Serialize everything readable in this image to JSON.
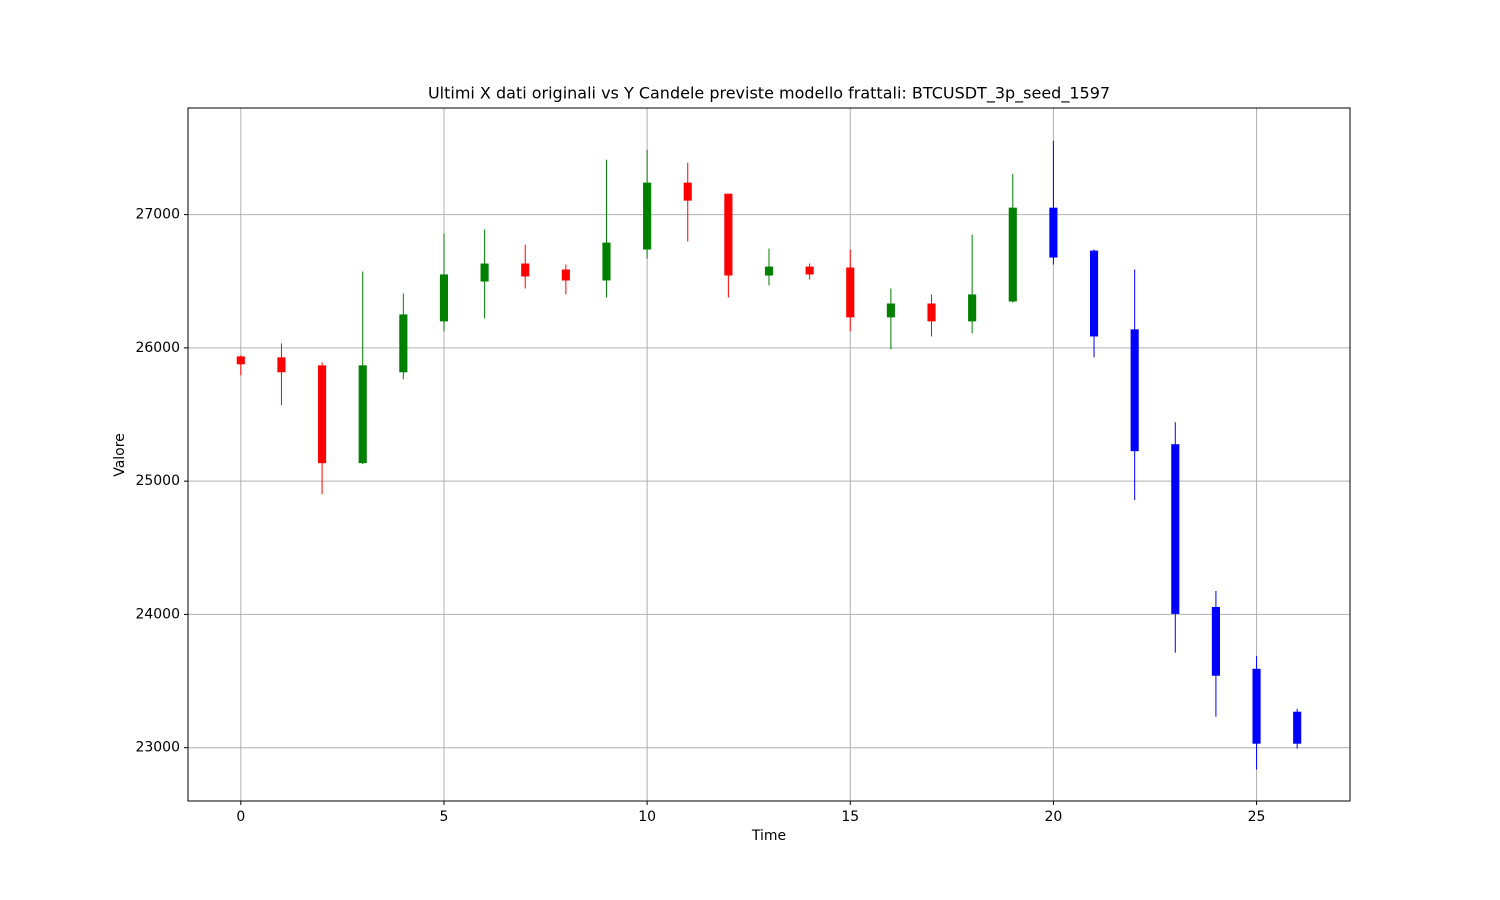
{
  "chart_data": {
    "type": "candlestick",
    "title": "Ultimi X dati originali vs Y Candele previste modello frattali: BTCUSDT_3p_seed_1597",
    "x_label": "Time",
    "y_label": "Valore",
    "x": [
      0,
      1,
      2,
      3,
      4,
      5,
      6,
      7,
      8,
      9,
      10,
      11,
      12,
      13,
      14,
      15,
      16,
      17,
      18,
      19,
      20,
      21,
      22,
      23,
      24,
      25,
      26
    ],
    "open": [
      25936,
      25929,
      25869,
      25135,
      25817,
      26199,
      26498,
      26633,
      26588,
      26506,
      26738,
      27240,
      27157,
      26543,
      26610,
      26603,
      26229,
      26333,
      26199,
      26348,
      27052,
      26730,
      26139,
      25277,
      24056,
      23592,
      23270
    ],
    "high": [
      25944,
      26034,
      25891,
      26573,
      26408,
      26858,
      26888,
      26775,
      26626,
      27412,
      27487,
      27389,
      27157,
      26745,
      26633,
      26738,
      26446,
      26401,
      26850,
      27307,
      27554,
      26738,
      26588,
      25442,
      24176,
      23689,
      23292
    ],
    "low": [
      25794,
      25569,
      24903,
      25128,
      25764,
      26124,
      26221,
      26446,
      26401,
      26378,
      26670,
      26798,
      26378,
      26468,
      26513,
      26124,
      25989,
      26086,
      26109,
      26341,
      26626,
      25929,
      24858,
      23712,
      23232,
      22836,
      22993
    ],
    "close": [
      25877,
      25817,
      25135,
      25869,
      26251,
      26551,
      26633,
      26536,
      26506,
      26790,
      27240,
      27105,
      26543,
      26610,
      26551,
      26229,
      26333,
      26199,
      26401,
      27052,
      26678,
      26086,
      25225,
      24004,
      23540,
      23030,
      23030
    ],
    "colors": [
      "red",
      "red",
      "red",
      "green",
      "green",
      "green",
      "green",
      "red",
      "red",
      "green",
      "green",
      "red",
      "red",
      "green",
      "red",
      "red",
      "green",
      "red",
      "green",
      "green",
      "blue",
      "blue",
      "blue",
      "blue",
      "blue",
      "blue",
      "blue"
    ],
    "xlim": [
      -1.3,
      27.3
    ],
    "ylim": [
      22600,
      27800
    ],
    "xticks": [
      0,
      5,
      10,
      15,
      20,
      25
    ],
    "yticks": [
      23000,
      24000,
      25000,
      26000,
      27000
    ],
    "grid": true
  }
}
